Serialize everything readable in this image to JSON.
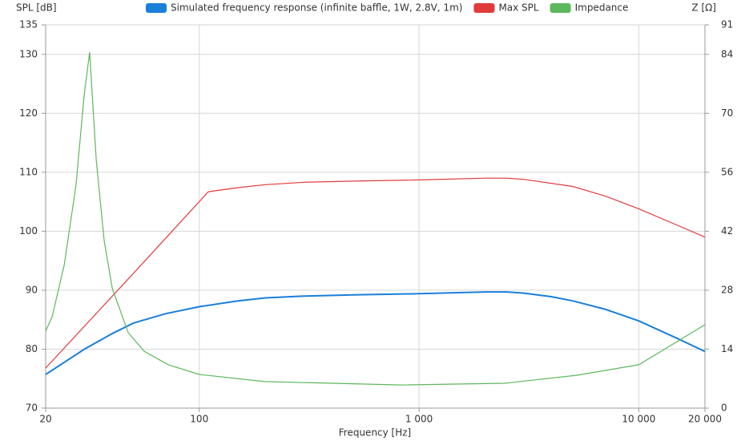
{
  "chart_data": {
    "type": "line",
    "y_label": "SPL [dB]",
    "y2_label": "Z [Ω]",
    "x_label": "Frequency [Hz]",
    "xscale": "log",
    "grid": true,
    "xlim": [
      20,
      20000
    ],
    "xticks": [
      20,
      100,
      {
        "value": 1000,
        "label": "1 000"
      },
      {
        "value": 10000,
        "label": "10 000"
      },
      {
        "value": 20000,
        "label": "20 000"
      }
    ],
    "ylim": [
      70,
      135
    ],
    "yticks": [
      70,
      80,
      90,
      100,
      110,
      120,
      130,
      135
    ],
    "y2lim": [
      0,
      91
    ],
    "y2ticks": [
      0,
      14,
      28,
      42,
      56,
      70,
      84,
      91
    ],
    "series": [
      {
        "name": "Simulated frequency response (infinite baffle, 1W, 2.8V, 1m)",
        "color": "#1a7fd9",
        "x": [
          20,
          30,
          40,
          50,
          70,
          100,
          150,
          200,
          300,
          500,
          1000,
          2000,
          2500,
          3000,
          4000,
          5000,
          7000,
          10000,
          15000,
          20000
        ],
        "values": [
          75.7,
          80,
          82.6,
          84.4,
          86,
          87.2,
          88.2,
          88.7,
          89,
          89.2,
          89.4,
          89.7,
          89.7,
          89.5,
          88.9,
          88.2,
          86.8,
          84.8,
          81.8,
          79.6
        ]
      },
      {
        "name": "Max SPL",
        "color": "#e03a3a",
        "x": [
          20,
          50,
          110,
          150,
          200,
          300,
          500,
          1000,
          2000,
          2500,
          3000,
          5000,
          7000,
          10000,
          15000,
          20000
        ],
        "values": [
          76.8,
          92.8,
          106.7,
          107.4,
          107.9,
          108.3,
          108.5,
          108.7,
          109,
          109,
          108.8,
          107.6,
          106,
          103.8,
          101,
          99
        ]
      },
      {
        "name": "Impedance",
        "color": "#5cb85c",
        "axis": "y2",
        "x": [
          20,
          21.4,
          24.3,
          27.5,
          29.9,
          31.7,
          34,
          36.9,
          40.2,
          47.5,
          56.2,
          72.3,
          100,
          198,
          824,
          2455,
          5224,
          10000,
          20000
        ],
        "values": [
          18.3,
          21.7,
          34,
          53,
          74,
          84.5,
          58.8,
          39.8,
          28.4,
          17.9,
          13.5,
          10.3,
          8,
          6.3,
          5.5,
          5.9,
          7.8,
          10.3,
          19.8
        ]
      }
    ]
  }
}
